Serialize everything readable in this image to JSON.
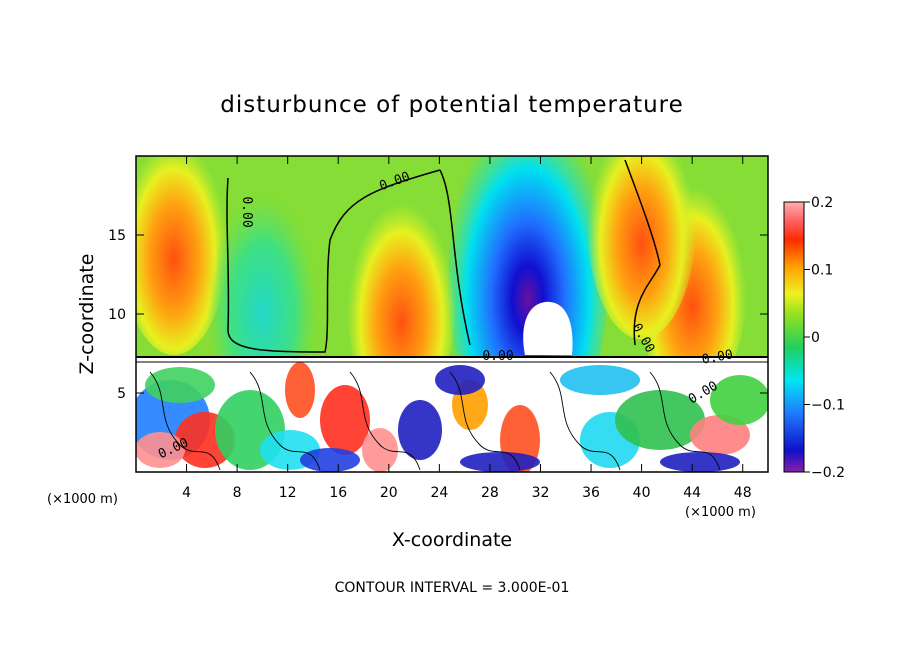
{
  "chart_data": {
    "type": "heatmap",
    "title": "disturbunce of potential temperature",
    "xlabel": "X-coordinate",
    "ylabel": "Z-coordinate",
    "x_unit": "(×1000 m)",
    "z_unit": "(×1000 m)",
    "xlim": [
      0,
      50
    ],
    "ylim": [
      0,
      20
    ],
    "x_ticks": [
      4,
      8,
      12,
      16,
      20,
      24,
      28,
      32,
      36,
      40,
      44,
      48
    ],
    "y_ticks": [
      5,
      10,
      15
    ],
    "colorbar": {
      "min": -0.2,
      "max": 0.2,
      "tick_values": [
        0.2,
        0.1,
        0,
        -0.1,
        -0.2
      ],
      "tick_labels": [
        "0.2",
        "0.1",
        "0",
        "−0.1",
        "−0.2"
      ]
    },
    "contour_labels": [
      "0.00",
      "0.00",
      "0.00",
      "0.00",
      "0.00",
      "0.00",
      "0.00"
    ],
    "contour_interval_text": "CONTOUR INTERVAL = 3.000E-01",
    "features": [
      {
        "x": 31,
        "z": 12,
        "value": -0.2
      },
      {
        "x": 21,
        "z": 11,
        "value": 0.12
      },
      {
        "x": 44,
        "z": 12,
        "value": 0.12
      },
      {
        "x": 3,
        "z": 15,
        "value": 0.08
      },
      {
        "x": 10,
        "z": 10,
        "value": -0.05
      },
      {
        "x": 40,
        "z": 16,
        "value": 0.05
      }
    ]
  }
}
